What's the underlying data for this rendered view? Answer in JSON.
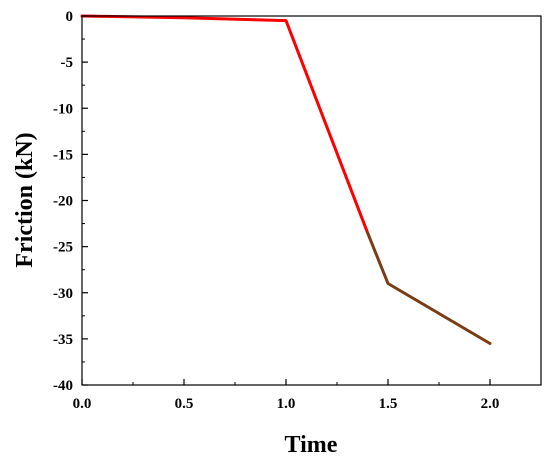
{
  "chart_data": {
    "type": "line",
    "title": "",
    "xlabel": "Time",
    "ylabel": "Friction (kN)",
    "xlim": [
      0.0,
      2.25
    ],
    "ylim": [
      -40,
      0
    ],
    "xticks": [
      0.0,
      0.5,
      1.0,
      1.5,
      2.0
    ],
    "xtick_labels": [
      "0.0",
      "0.5",
      "1.0",
      "1.5",
      "2.0"
    ],
    "yticks": [
      0,
      -5,
      -10,
      -15,
      -20,
      -25,
      -30,
      -35,
      -40
    ],
    "ytick_labels": [
      "0",
      "-5",
      "-10",
      "-15",
      "-20",
      "-25",
      "-30",
      "-35",
      "-40"
    ],
    "grid": false,
    "legend": "none",
    "series": [
      {
        "color": "#ff0000",
        "x": [
          0.0,
          0.5,
          1.0,
          1.4
        ],
        "y": [
          0.0,
          -0.2,
          -0.5,
          -23.5
        ]
      },
      {
        "color": "#7a3c14",
        "x": [
          1.4,
          1.5,
          2.0
        ],
        "y": [
          -23.5,
          -29.0,
          -35.5
        ]
      }
    ]
  }
}
